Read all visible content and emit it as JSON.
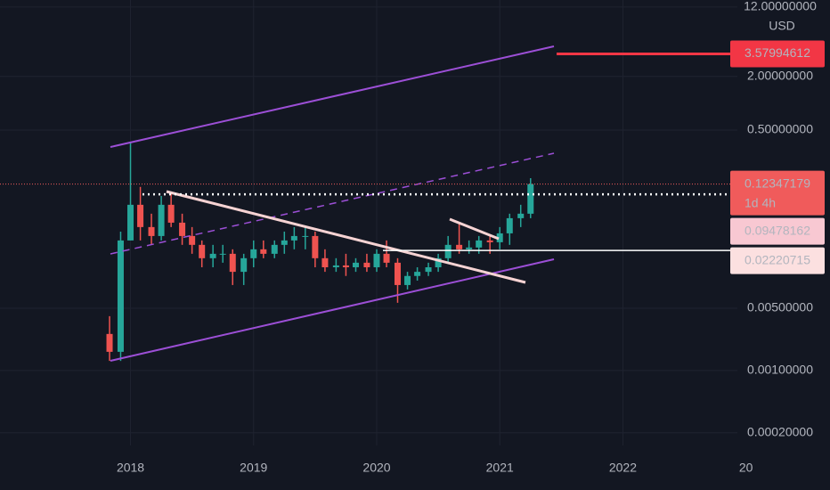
{
  "chart_data": {
    "type": "candlestick",
    "currency": "USD",
    "log_scale": true,
    "grid": true,
    "up_color": "#26a69a",
    "down_color": "#ef5350",
    "x": [
      2017.83,
      2017.92,
      2018,
      2018.08,
      2018.17,
      2018.25,
      2018.33,
      2018.42,
      2018.5,
      2018.58,
      2018.67,
      2018.75,
      2018.83,
      2018.92,
      2019,
      2019.08,
      2019.17,
      2019.25,
      2019.33,
      2019.42,
      2019.5,
      2019.58,
      2019.67,
      2019.75,
      2019.83,
      2019.92,
      2020,
      2020.08,
      2020.17,
      2020.25,
      2020.33,
      2020.42,
      2020.5,
      2020.58,
      2020.67,
      2020.75,
      2020.83,
      2020.92,
      2021,
      2021.08,
      2021.17,
      2021.25
    ],
    "open": [
      0.00257,
      0.00162,
      0.0288,
      0.0724,
      0.0407,
      0.0323,
      0.0724,
      0.0456,
      0.0323,
      0.0257,
      0.0182,
      0.0204,
      0.0204,
      0.0128,
      0.0182,
      0.0229,
      0.0204,
      0.0257,
      0.0288,
      0.0323,
      0.0323,
      0.0182,
      0.0144,
      0.0151,
      0.0144,
      0.0162,
      0.0144,
      0.0204,
      0.0162,
      0.0091,
      0.0115,
      0.0128,
      0.0144,
      0.0182,
      0.0257,
      0.0229,
      0.024,
      0.0288,
      0.0275,
      0.0346,
      0.0512,
      0.0575
    ],
    "high": [
      0.00407,
      0.0362,
      0.362,
      0.115,
      0.0575,
      0.091,
      0.102,
      0.0575,
      0.0407,
      0.0288,
      0.0257,
      0.0257,
      0.0229,
      0.0204,
      0.0288,
      0.0288,
      0.0288,
      0.0362,
      0.0407,
      0.0407,
      0.0362,
      0.0229,
      0.0182,
      0.0204,
      0.0182,
      0.0204,
      0.0229,
      0.0288,
      0.0182,
      0.0128,
      0.0144,
      0.0162,
      0.0204,
      0.0323,
      0.0456,
      0.0288,
      0.0323,
      0.0323,
      0.0407,
      0.0575,
      0.0724,
      0.144
    ],
    "low": [
      0.00128,
      0.00128,
      0.0288,
      0.0288,
      0.0257,
      0.0288,
      0.0407,
      0.0257,
      0.0204,
      0.0144,
      0.0144,
      0.0162,
      0.0091,
      0.0091,
      0.0144,
      0.0182,
      0.0182,
      0.0204,
      0.0229,
      0.0229,
      0.0144,
      0.0128,
      0.0128,
      0.0115,
      0.0128,
      0.0128,
      0.0128,
      0.0144,
      0.00575,
      0.00812,
      0.0102,
      0.0115,
      0.0128,
      0.0162,
      0.0204,
      0.0204,
      0.0204,
      0.0204,
      0.0229,
      0.0257,
      0.0407,
      0.0512
    ],
    "close": [
      0.00162,
      0.0288,
      0.0724,
      0.0407,
      0.0323,
      0.0724,
      0.0456,
      0.0323,
      0.0257,
      0.0182,
      0.0204,
      0.0204,
      0.0128,
      0.0182,
      0.0229,
      0.0204,
      0.0257,
      0.0288,
      0.0323,
      0.0323,
      0.0182,
      0.0144,
      0.0151,
      0.0144,
      0.0162,
      0.0144,
      0.0204,
      0.0162,
      0.0091,
      0.0115,
      0.0128,
      0.0144,
      0.0182,
      0.0257,
      0.0229,
      0.024,
      0.0288,
      0.0275,
      0.0346,
      0.0512,
      0.0575,
      0.1235
    ],
    "xlim": [
      2016.94,
      2022.93
    ],
    "xticks": [
      2018,
      2019,
      2020,
      2021,
      2022,
      {
        "value": 2023,
        "label": "20"
      }
    ],
    "ylim": [
      0.000144,
      14.4
    ],
    "yticks": [
      {
        "value": 12,
        "label": "12.00000000"
      },
      {
        "value": 2,
        "label": "2.00000000"
      },
      {
        "value": 0.5,
        "label": "0.50000000"
      },
      {
        "value": 0.005,
        "label": "0.00500000"
      },
      {
        "value": 0.001,
        "label": "0.00100000"
      },
      {
        "value": 0.0002,
        "label": "0.00020000"
      }
    ],
    "annotations": [
      {
        "value": 3.57994612,
        "label": "3.57994612",
        "color": "#f23645",
        "text_color": "#ffffff",
        "line": "solid"
      },
      {
        "value": 0.12347179,
        "label": "0.12347179",
        "countdown": "1d 4h",
        "color": "#f05b5b",
        "text_color": "#ffffff",
        "line": "faint"
      },
      {
        "value": 0.09478162,
        "label": "0.09478162",
        "color": "#f8c8d2",
        "text_color": "#131722",
        "line": "dotted"
      },
      {
        "value": 0.02220715,
        "label": "0.02220715",
        "color": "#fce0e0",
        "text_color": "#131722",
        "line": "solid-white"
      }
    ]
  }
}
